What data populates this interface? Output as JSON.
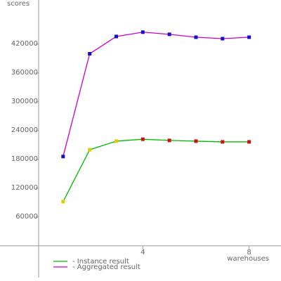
{
  "chart_data": {
    "type": "line",
    "y_label": "scores",
    "x_label": "warehouses",
    "x": [
      1,
      2,
      3,
      4,
      5,
      6,
      7,
      8
    ],
    "series": [
      {
        "name": "- Instance result",
        "color": "#00bb00",
        "marker_colors": [
          "#ddcc00",
          "#ddcc00",
          "#ddcc00",
          "#cc1111",
          "#cc1111",
          "#cc1111",
          "#cc1111",
          "#cc1111"
        ],
        "values": [
          92000,
          200000,
          218000,
          222000,
          219500,
          218000,
          216500,
          216500
        ]
      },
      {
        "name": "- Aggregated result",
        "color": "#cc00cc",
        "marker_colors": [
          "#1111cc",
          "#1111cc",
          "#1111cc",
          "#1111cc",
          "#1111cc",
          "#1111cc",
          "#1111cc",
          "#1111cc"
        ],
        "values": [
          186000,
          400000,
          436000,
          445000,
          440500,
          434500,
          431500,
          434500
        ]
      }
    ],
    "xlim": [
      0,
      9.2
    ],
    "ylim": [
      -66000,
      512000
    ],
    "xticks": [
      4,
      8
    ],
    "yticks": [
      60000,
      120000,
      180000,
      240000,
      300000,
      360000,
      420000
    ]
  }
}
